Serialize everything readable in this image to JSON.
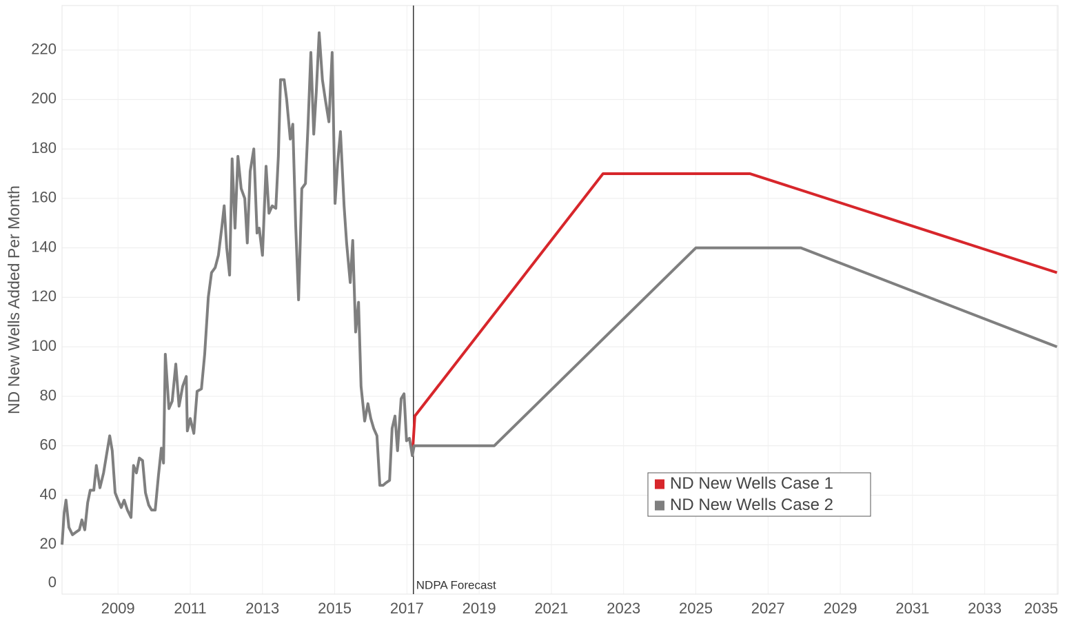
{
  "chart_data": {
    "type": "line",
    "y_label": "ND New Wells Added Per Month",
    "xlim": [
      2007.45,
      2035.03
    ],
    "ylim": [
      0,
      238
    ],
    "xticks": [
      2009,
      2011,
      2013,
      2015,
      2017,
      2019,
      2021,
      2023,
      2025,
      2027,
      2029,
      2031,
      2033,
      2035
    ],
    "yticks": [
      0,
      20,
      40,
      60,
      80,
      100,
      120,
      140,
      160,
      180,
      200,
      220
    ],
    "grid": true,
    "legend": "lower-center",
    "annotations": [
      {
        "text": "NDPA Forecast",
        "x": 2017.18
      }
    ],
    "series": [
      {
        "name": "ND New Wells Case 1",
        "color": "#d7262b",
        "x": [
          2017.15,
          2017.22,
          2022.43,
          2026.5,
          2035.0
        ],
        "values": [
          56,
          72,
          170,
          170,
          130
        ]
      },
      {
        "name": "ND New Wells Case 2",
        "color": "#7f7f7f",
        "x": [
          2007.45,
          2007.51,
          2007.56,
          2007.64,
          2007.74,
          2007.83,
          2007.93,
          2008.0,
          2008.08,
          2008.16,
          2008.23,
          2008.33,
          2008.4,
          2008.5,
          2008.6,
          2008.69,
          2008.77,
          2008.84,
          2008.92,
          2009.0,
          2009.09,
          2009.17,
          2009.26,
          2009.36,
          2009.43,
          2009.51,
          2009.59,
          2009.68,
          2009.76,
          2009.85,
          2009.93,
          2010.03,
          2010.12,
          2010.2,
          2010.26,
          2010.31,
          2010.41,
          2010.5,
          2010.6,
          2010.69,
          2010.79,
          2010.89,
          2010.92,
          2011.0,
          2011.1,
          2011.19,
          2011.31,
          2011.4,
          2011.5,
          2011.59,
          2011.69,
          2011.78,
          2011.88,
          2011.94,
          2012.01,
          2012.09,
          2012.16,
          2012.24,
          2012.32,
          2012.41,
          2012.51,
          2012.58,
          2012.66,
          2012.76,
          2012.85,
          2012.91,
          2013.0,
          2013.1,
          2013.18,
          2013.27,
          2013.37,
          2013.44,
          2013.5,
          2013.6,
          2013.67,
          2013.77,
          2013.84,
          2013.92,
          2014.0,
          2014.09,
          2014.19,
          2014.26,
          2014.34,
          2014.42,
          2014.49,
          2014.57,
          2014.66,
          2014.74,
          2014.84,
          2014.93,
          2015.01,
          2015.08,
          2015.16,
          2015.26,
          2015.33,
          2015.43,
          2015.5,
          2015.58,
          2015.66,
          2015.73,
          2015.83,
          2015.92,
          2016.0,
          2016.08,
          2016.17,
          2016.25,
          2016.34,
          2016.42,
          2016.52,
          2016.59,
          2016.67,
          2016.74,
          2016.84,
          2016.92,
          2016.99,
          2017.07,
          2017.15,
          2017.2,
          2019.42,
          2025.0,
          2027.91,
          2035.0
        ],
        "values": [
          20,
          33,
          38,
          27,
          24,
          25,
          26,
          30,
          26,
          37,
          42,
          42,
          52,
          43,
          49,
          57,
          64,
          58,
          41,
          38,
          35,
          38,
          34,
          31,
          52,
          49,
          55,
          54,
          41,
          36,
          34,
          34,
          48,
          59,
          53,
          97,
          75,
          78,
          93,
          76,
          84,
          88,
          66,
          71,
          65,
          82,
          83,
          97,
          120,
          130,
          132,
          137,
          149,
          157,
          140,
          129,
          176,
          148,
          177,
          164,
          160,
          142,
          171,
          180,
          146,
          148,
          137,
          173,
          154,
          157,
          156,
          177,
          208,
          208,
          200,
          184,
          190,
          149,
          119,
          164,
          166,
          189,
          219,
          186,
          203,
          227,
          208,
          200,
          191,
          219,
          158,
          174,
          187,
          157,
          142,
          126,
          143,
          106,
          118,
          84,
          70,
          77,
          71,
          67,
          64,
          44,
          44,
          45,
          46,
          67,
          72,
          58,
          79,
          81,
          62,
          63,
          56,
          60,
          60,
          140,
          140,
          100
        ]
      }
    ]
  }
}
